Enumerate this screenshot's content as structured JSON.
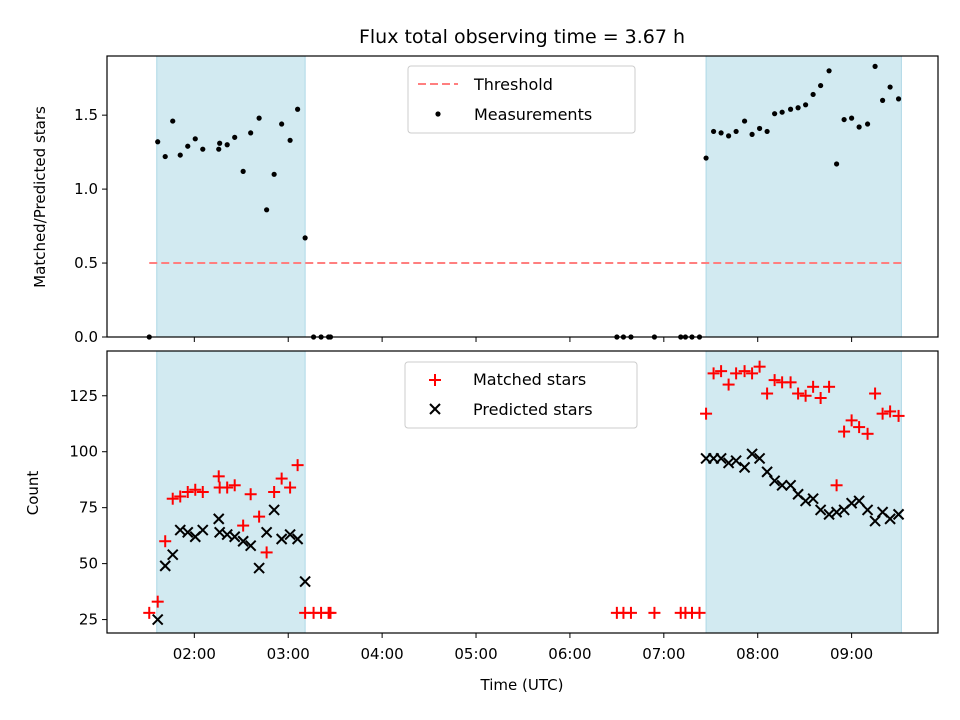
{
  "chart_data": {
    "title": "Flux total observing time = 3.67 h",
    "xlabel": "Time (UTC)",
    "x_unit": "hours UTC",
    "xlim": [
      1.07,
      9.92
    ],
    "xticks": [
      {
        "v": 2,
        "label": "02:00"
      },
      {
        "v": 3,
        "label": "03:00"
      },
      {
        "v": 4,
        "label": "04:00"
      },
      {
        "v": 5,
        "label": "05:00"
      },
      {
        "v": 6,
        "label": "06:00"
      },
      {
        "v": 7,
        "label": "07:00"
      },
      {
        "v": 8,
        "label": "08:00"
      },
      {
        "v": 9,
        "label": "09:00"
      }
    ],
    "colors": {
      "band": "#add8e6",
      "threshold": "#ff7f7f",
      "measure": "#000000",
      "matched": "#ff0000",
      "predicted": "#000000"
    },
    "observing_windows": [
      [
        1.6,
        3.18
      ],
      [
        7.45,
        9.53
      ]
    ],
    "panels": [
      {
        "type": "scatter",
        "ylabel": "Matched/Predicted stars",
        "ylim": [
          0,
          1.9
        ],
        "yticks": [
          {
            "v": 0,
            "label": "0.0"
          },
          {
            "v": 0.5,
            "label": "0.5"
          },
          {
            "v": 1.0,
            "label": "1.0"
          },
          {
            "v": 1.5,
            "label": "1.5"
          }
        ],
        "threshold": {
          "name": "Threshold",
          "value": 0.5,
          "x_range": [
            1.52,
            9.53
          ]
        },
        "series": [
          {
            "name": "Measurements",
            "marker": "dot",
            "points": [
              [
                1.52,
                0.0
              ],
              [
                1.61,
                1.32
              ],
              [
                1.69,
                1.22
              ],
              [
                1.77,
                1.46
              ],
              [
                1.85,
                1.23
              ],
              [
                1.93,
                1.29
              ],
              [
                2.01,
                1.34
              ],
              [
                2.09,
                1.27
              ],
              [
                2.26,
                1.27
              ],
              [
                2.27,
                1.31
              ],
              [
                2.35,
                1.3
              ],
              [
                2.43,
                1.35
              ],
              [
                2.52,
                1.12
              ],
              [
                2.6,
                1.38
              ],
              [
                2.69,
                1.48
              ],
              [
                2.77,
                0.86
              ],
              [
                2.85,
                1.1
              ],
              [
                2.93,
                1.44
              ],
              [
                3.02,
                1.33
              ],
              [
                3.1,
                1.54
              ],
              [
                3.18,
                0.67
              ],
              [
                3.27,
                0.0
              ],
              [
                3.35,
                0.0
              ],
              [
                3.43,
                0.0
              ],
              [
                3.45,
                0.0
              ],
              [
                6.5,
                0.0
              ],
              [
                6.57,
                0.0
              ],
              [
                6.65,
                0.0
              ],
              [
                6.9,
                0.0
              ],
              [
                7.18,
                0.0
              ],
              [
                7.23,
                0.0
              ],
              [
                7.3,
                0.0
              ],
              [
                7.38,
                0.0
              ],
              [
                7.45,
                1.21
              ],
              [
                7.53,
                1.39
              ],
              [
                7.61,
                1.38
              ],
              [
                7.69,
                1.36
              ],
              [
                7.77,
                1.39
              ],
              [
                7.86,
                1.46
              ],
              [
                7.94,
                1.37
              ],
              [
                8.02,
                1.41
              ],
              [
                8.1,
                1.39
              ],
              [
                8.18,
                1.51
              ],
              [
                8.26,
                1.52
              ],
              [
                8.35,
                1.54
              ],
              [
                8.43,
                1.55
              ],
              [
                8.51,
                1.57
              ],
              [
                8.59,
                1.64
              ],
              [
                8.67,
                1.7
              ],
              [
                8.76,
                1.8
              ],
              [
                8.84,
                1.17
              ],
              [
                8.92,
                1.47
              ],
              [
                9.0,
                1.48
              ],
              [
                9.08,
                1.42
              ],
              [
                9.17,
                1.44
              ],
              [
                9.25,
                1.83
              ],
              [
                9.33,
                1.6
              ],
              [
                9.41,
                1.69
              ],
              [
                9.5,
                1.61
              ]
            ]
          }
        ],
        "legend": [
          "Threshold",
          "Measurements"
        ],
        "legend_position": "top-center"
      },
      {
        "type": "scatter",
        "ylabel": "Count",
        "ylim": [
          19,
          145
        ],
        "yticks": [
          {
            "v": 25,
            "label": "25"
          },
          {
            "v": 50,
            "label": "50"
          },
          {
            "v": 75,
            "label": "75"
          },
          {
            "v": 100,
            "label": "100"
          },
          {
            "v": 125,
            "label": "125"
          }
        ],
        "series": [
          {
            "name": "Matched stars",
            "marker": "plus",
            "points": [
              [
                1.52,
                28
              ],
              [
                1.61,
                33
              ],
              [
                1.69,
                60
              ],
              [
                1.77,
                79
              ],
              [
                1.85,
                80
              ],
              [
                1.93,
                82
              ],
              [
                2.01,
                83
              ],
              [
                2.09,
                82
              ],
              [
                2.26,
                89
              ],
              [
                2.27,
                84
              ],
              [
                2.35,
                84
              ],
              [
                2.43,
                85
              ],
              [
                2.52,
                67
              ],
              [
                2.6,
                81
              ],
              [
                2.69,
                71
              ],
              [
                2.77,
                55
              ],
              [
                2.85,
                82
              ],
              [
                2.93,
                88
              ],
              [
                3.02,
                84
              ],
              [
                3.1,
                94
              ],
              [
                3.18,
                28
              ],
              [
                3.27,
                28
              ],
              [
                3.35,
                28
              ],
              [
                3.43,
                28
              ],
              [
                3.45,
                28
              ],
              [
                6.5,
                28
              ],
              [
                6.57,
                28
              ],
              [
                6.65,
                28
              ],
              [
                6.9,
                28
              ],
              [
                7.18,
                28
              ],
              [
                7.23,
                28
              ],
              [
                7.3,
                28
              ],
              [
                7.38,
                28
              ],
              [
                7.45,
                117
              ],
              [
                7.53,
                135
              ],
              [
                7.61,
                136
              ],
              [
                7.69,
                130
              ],
              [
                7.77,
                135
              ],
              [
                7.86,
                136
              ],
              [
                7.94,
                135
              ],
              [
                8.02,
                138
              ],
              [
                8.1,
                126
              ],
              [
                8.18,
                132
              ],
              [
                8.26,
                131
              ],
              [
                8.35,
                131
              ],
              [
                8.43,
                126
              ],
              [
                8.51,
                125
              ],
              [
                8.59,
                129
              ],
              [
                8.67,
                124
              ],
              [
                8.76,
                129
              ],
              [
                8.84,
                85
              ],
              [
                8.92,
                109
              ],
              [
                9.0,
                114
              ],
              [
                9.08,
                111
              ],
              [
                9.17,
                108
              ],
              [
                9.25,
                126
              ],
              [
                9.33,
                117
              ],
              [
                9.41,
                118
              ],
              [
                9.5,
                116
              ]
            ]
          },
          {
            "name": "Predicted stars",
            "marker": "cross",
            "points": [
              [
                1.61,
                25
              ],
              [
                1.69,
                49
              ],
              [
                1.77,
                54
              ],
              [
                1.85,
                65
              ],
              [
                1.93,
                64
              ],
              [
                2.01,
                62
              ],
              [
                2.09,
                65
              ],
              [
                2.26,
                70
              ],
              [
                2.27,
                64
              ],
              [
                2.35,
                63
              ],
              [
                2.43,
                62
              ],
              [
                2.52,
                60
              ],
              [
                2.6,
                58
              ],
              [
                2.69,
                48
              ],
              [
                2.77,
                64
              ],
              [
                2.85,
                74
              ],
              [
                2.93,
                61
              ],
              [
                3.02,
                63
              ],
              [
                3.1,
                61
              ],
              [
                3.18,
                42
              ],
              [
                7.45,
                97
              ],
              [
                7.53,
                97
              ],
              [
                7.61,
                97
              ],
              [
                7.69,
                95
              ],
              [
                7.77,
                96
              ],
              [
                7.86,
                93
              ],
              [
                7.94,
                99
              ],
              [
                8.02,
                97
              ],
              [
                8.1,
                91
              ],
              [
                8.18,
                87
              ],
              [
                8.26,
                85
              ],
              [
                8.35,
                85
              ],
              [
                8.43,
                81
              ],
              [
                8.51,
                78
              ],
              [
                8.59,
                79
              ],
              [
                8.67,
                74
              ],
              [
                8.76,
                72
              ],
              [
                8.84,
                73
              ],
              [
                8.92,
                74
              ],
              [
                9.0,
                77
              ],
              [
                9.08,
                78
              ],
              [
                9.17,
                74
              ],
              [
                9.25,
                69
              ],
              [
                9.33,
                73
              ],
              [
                9.41,
                70
              ],
              [
                9.5,
                72
              ]
            ]
          }
        ],
        "legend": [
          "Matched stars",
          "Predicted stars"
        ],
        "legend_position": "top-center"
      }
    ]
  }
}
